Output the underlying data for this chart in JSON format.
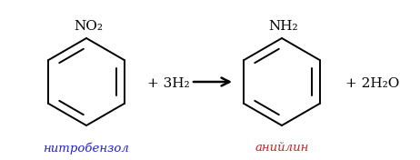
{
  "bg_color": "#ffffff",
  "text_color": "#000000",
  "blue_color": "#2222cc",
  "red_color": "#cc2222",
  "benzene_color": "#000000",
  "figsize": [
    4.62,
    1.76
  ],
  "dpi": 100,
  "label_nitrobenzol": "нитробензол",
  "label_anilin": "анийлин",
  "no2_label": "NO₂",
  "nh2_label": "NH₂",
  "reagent": "+ 3H₂",
  "product": "+ 2H₂O"
}
